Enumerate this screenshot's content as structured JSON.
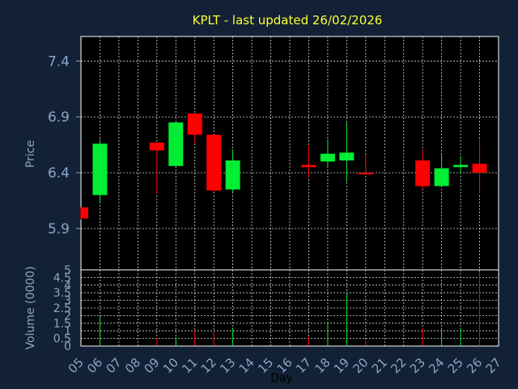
{
  "chart_data": {
    "type": "candlestick",
    "title": "KPLT - last updated 26/02/2026",
    "ylabel": "Price",
    "volume_label": "Volume (0000)",
    "xlabel": "Day",
    "x_ticks": [
      "05",
      "06",
      "07",
      "08",
      "09",
      "10",
      "11",
      "12",
      "13",
      "14",
      "15",
      "16",
      "17",
      "18",
      "19",
      "20",
      "21",
      "22",
      "23",
      "24",
      "25",
      "26",
      "27"
    ],
    "price_ticks": [
      5.9,
      6.4,
      6.9,
      7.4
    ],
    "price_tick_labels": [
      "5.9",
      "6.4",
      "6.9",
      "7.4"
    ],
    "ylim": [
      5.53,
      7.62
    ],
    "volume_ticks": [
      0,
      0.5,
      1,
      1.5,
      2,
      2.5,
      3,
      3.5,
      4,
      4.5,
      5
    ],
    "volume_tick_labels": [
      "0",
      "0.5",
      "1",
      "1.5",
      "2",
      "2.5",
      "3",
      "3.5",
      "4",
      "4.5",
      "5"
    ],
    "volume_ylim": [
      0,
      5
    ],
    "grid": true,
    "up_color": "#00ee33",
    "down_color": "#ff0000",
    "candles": [
      {
        "day": "05",
        "open": 6.09,
        "high": 6.09,
        "low": 5.98,
        "close": 5.99,
        "volume": 0.0
      },
      {
        "day": "06",
        "open": 6.2,
        "high": 6.7,
        "low": 6.13,
        "close": 6.66,
        "volume": 1.9
      },
      {
        "day": "09",
        "open": 6.67,
        "high": 6.67,
        "low": 6.21,
        "close": 6.6,
        "volume": 0.5
      },
      {
        "day": "10",
        "open": 6.46,
        "high": 6.85,
        "low": 6.46,
        "close": 6.85,
        "volume": 0.6
      },
      {
        "day": "11",
        "open": 6.93,
        "high": 6.93,
        "low": 6.66,
        "close": 6.74,
        "volume": 1.0
      },
      {
        "day": "12",
        "open": 6.74,
        "high": 6.74,
        "low": 6.23,
        "close": 6.24,
        "volume": 1.0
      },
      {
        "day": "13",
        "open": 6.25,
        "high": 6.61,
        "low": 6.22,
        "close": 6.51,
        "volume": 1.2
      },
      {
        "day": "17",
        "open": 6.47,
        "high": 6.64,
        "low": 6.36,
        "close": 6.45,
        "volume": 0.6
      },
      {
        "day": "18",
        "open": 6.5,
        "high": 6.7,
        "low": 6.46,
        "close": 6.57,
        "volume": 1.6
      },
      {
        "day": "19",
        "open": 6.51,
        "high": 6.85,
        "low": 6.32,
        "close": 6.58,
        "volume": 3.4
      },
      {
        "day": "20",
        "open": 6.4,
        "high": 6.56,
        "low": 6.38,
        "close": 6.39,
        "volume": 0.3
      },
      {
        "day": "23",
        "open": 6.51,
        "high": 6.61,
        "low": 6.25,
        "close": 6.28,
        "volume": 1.2
      },
      {
        "day": "24",
        "open": 6.28,
        "high": 6.56,
        "low": 6.28,
        "close": 6.44,
        "volume": 1.1
      },
      {
        "day": "25",
        "open": 6.45,
        "high": 6.55,
        "low": 6.39,
        "close": 6.47,
        "volume": 1.2
      },
      {
        "day": "26",
        "open": 6.48,
        "high": 6.71,
        "low": 6.21,
        "close": 6.4,
        "volume": 4.9
      }
    ]
  }
}
